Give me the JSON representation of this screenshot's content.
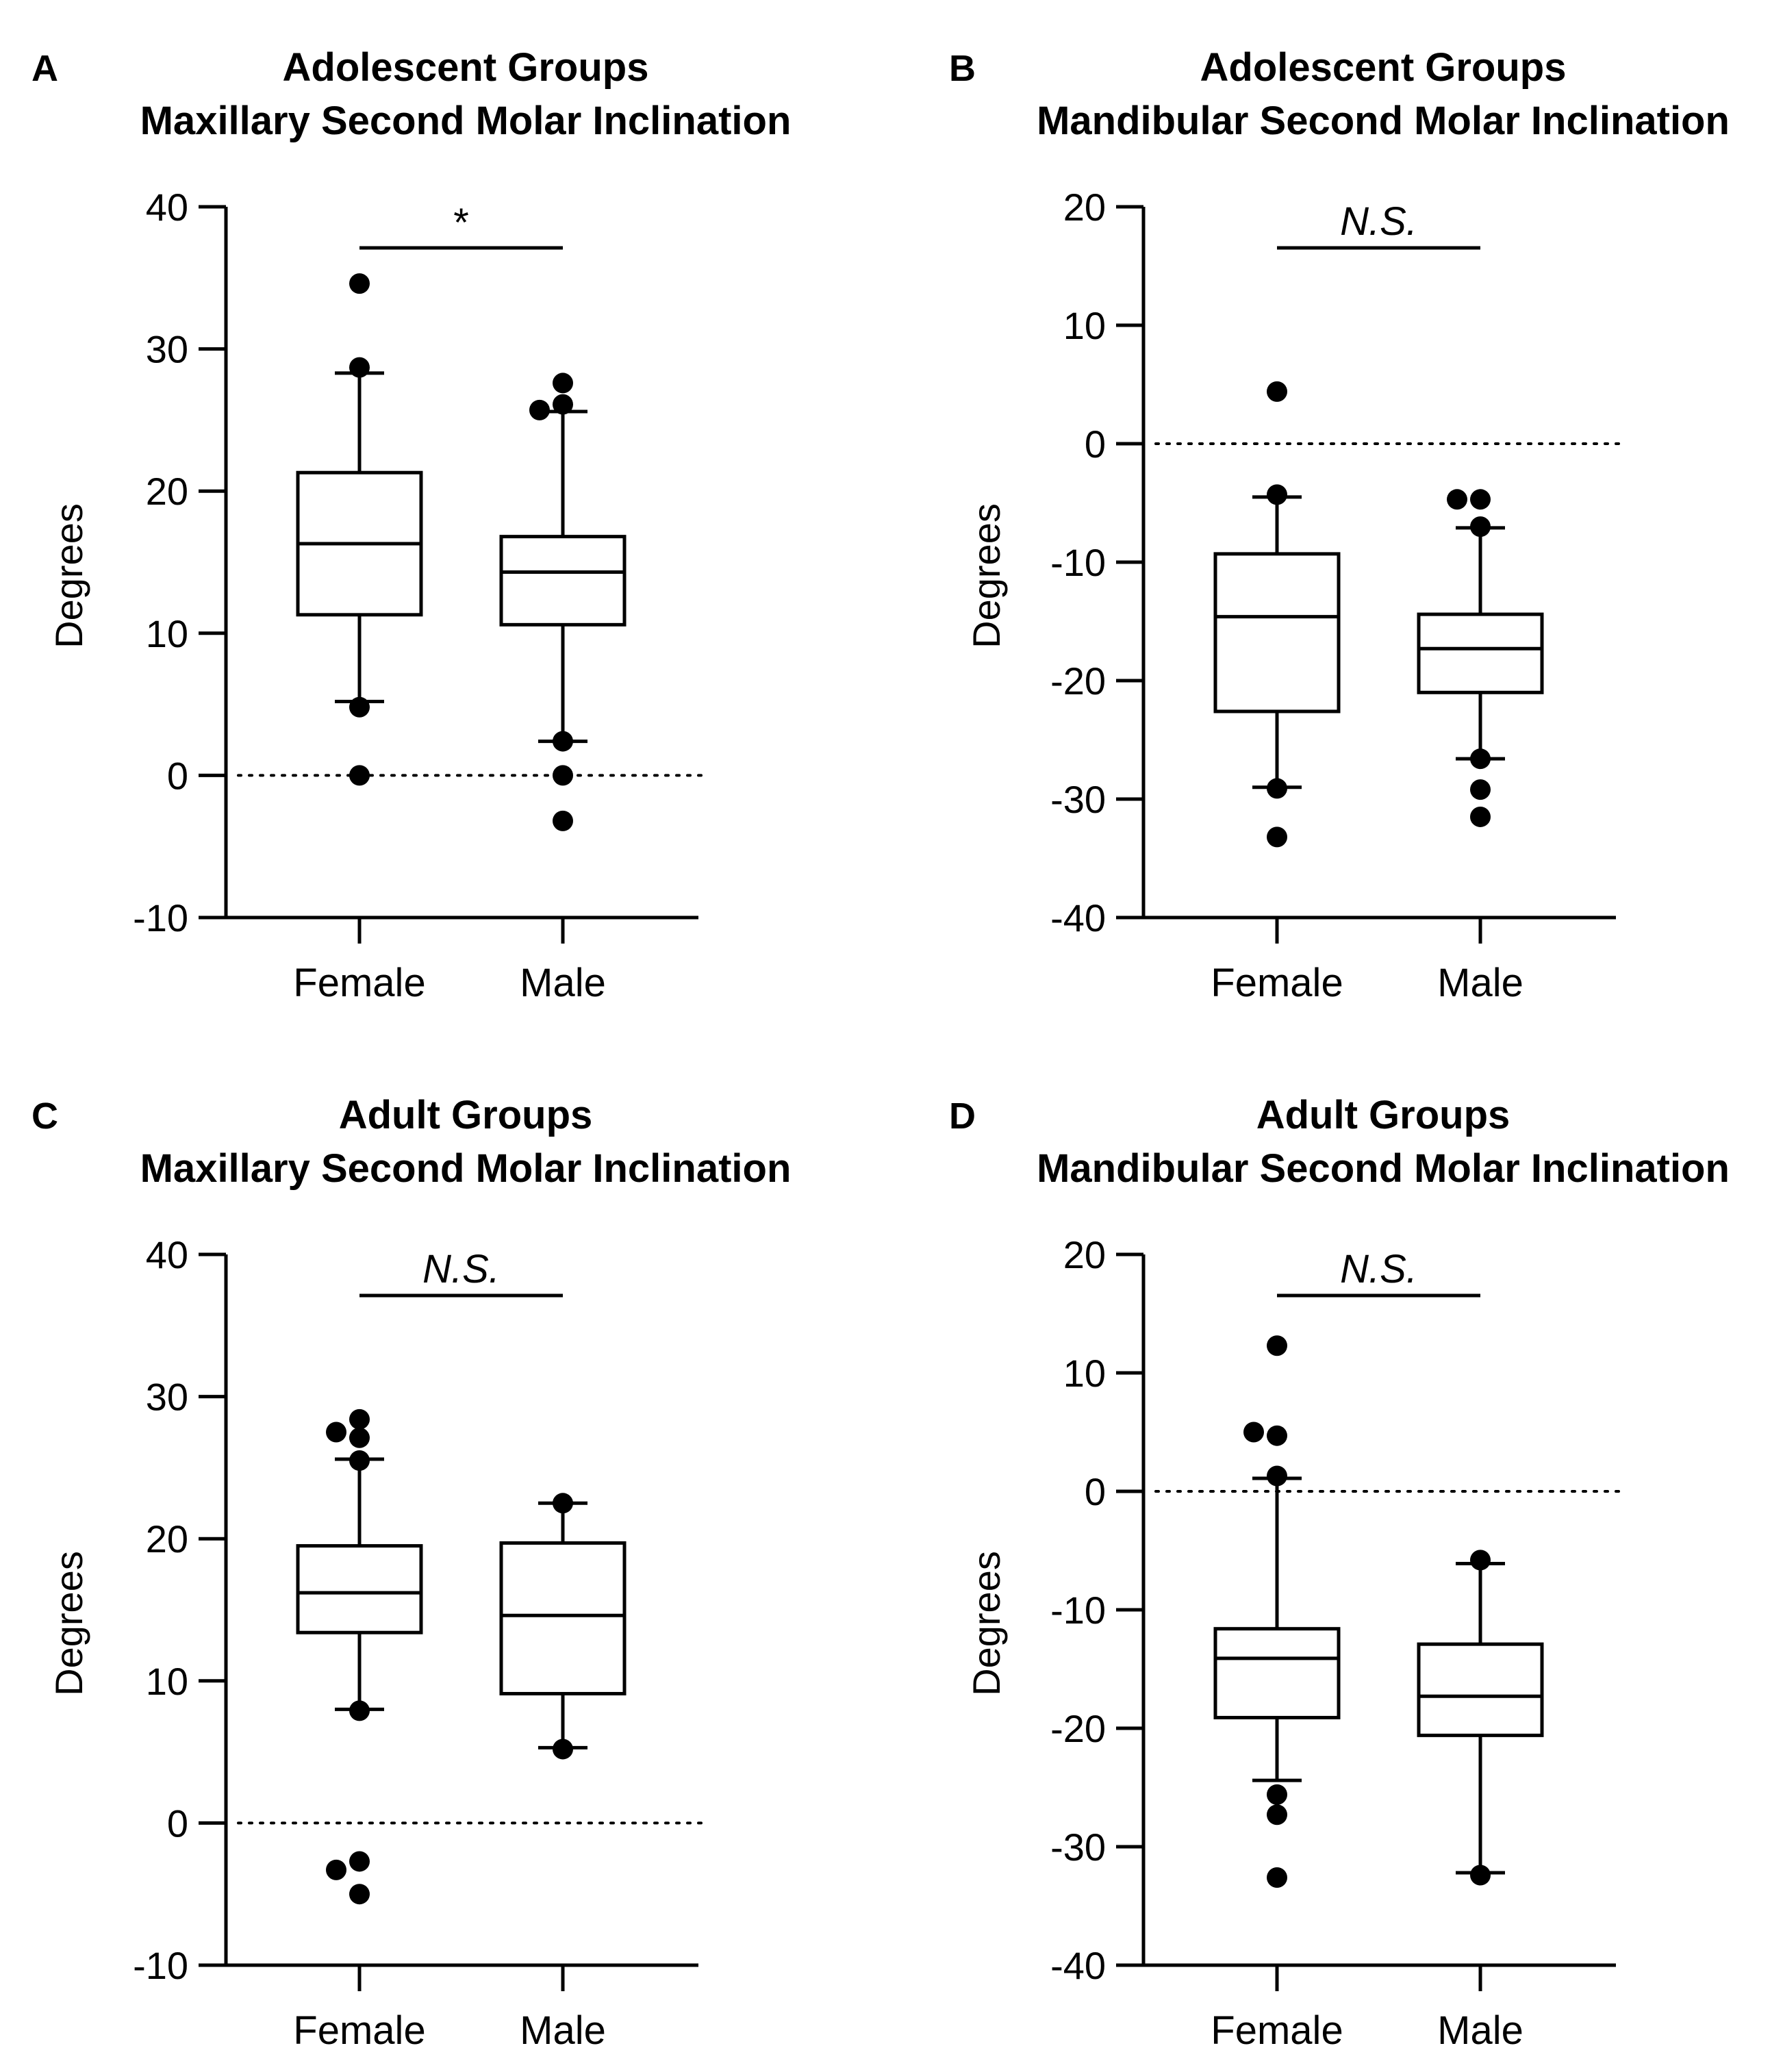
{
  "figure": {
    "background": "#ffffff",
    "ink": "#000000"
  },
  "chart_data": [
    {
      "panel": "A",
      "type": "box",
      "title_line1": "Adolescent Groups",
      "title_line2": "Maxillary Second Molar Inclination",
      "ylabel": "Degrees",
      "ylim": [
        -10,
        40
      ],
      "yticks": [
        40,
        30,
        20,
        10,
        0,
        -10
      ],
      "reference_line": 0,
      "categories": [
        "Female",
        "Male"
      ],
      "significance": "*",
      "significance_italic": false,
      "boxes": [
        {
          "name": "Female",
          "whisker_low": 5.2,
          "q1": 11.3,
          "median": 16.3,
          "q3": 21.3,
          "whisker_high": 28.3,
          "outliers": [
            34.6,
            28.7,
            4.8,
            0.0
          ]
        },
        {
          "name": "Male",
          "whisker_low": 2.4,
          "q1": 10.6,
          "median": 14.3,
          "q3": 16.8,
          "whisker_high": 25.6,
          "outliers": [
            26.1,
            27.6,
            25.7,
            2.4,
            0.0,
            -3.2
          ]
        }
      ]
    },
    {
      "panel": "B",
      "type": "box",
      "title_line1": "Adolescent Groups",
      "title_line2": "Mandibular Second Molar Inclination",
      "ylabel": "Degrees",
      "ylim": [
        -40,
        20
      ],
      "yticks": [
        20,
        10,
        0,
        -10,
        -20,
        -30,
        -40
      ],
      "reference_line": 0,
      "categories": [
        "Female",
        "Male"
      ],
      "significance": "N.S.",
      "significance_italic": true,
      "boxes": [
        {
          "name": "Female",
          "whisker_low": -29.0,
          "q1": -22.6,
          "median": -14.6,
          "q3": -9.3,
          "whisker_high": -4.5,
          "outliers": [
            4.4,
            -4.3,
            -29.1,
            -33.2
          ]
        },
        {
          "name": "Male",
          "whisker_low": -26.6,
          "q1": -21.0,
          "median": -17.3,
          "q3": -14.4,
          "whisker_high": -7.1,
          "outliers": [
            -4.7,
            -4.7,
            -7.0,
            -26.6,
            -29.2,
            -31.5
          ]
        }
      ]
    },
    {
      "panel": "C",
      "type": "box",
      "title_line1": "Adult Groups",
      "title_line2": "Maxillary Second Molar Inclination",
      "ylabel": "Degrees",
      "ylim": [
        -10,
        40
      ],
      "yticks": [
        40,
        30,
        20,
        10,
        0,
        -10
      ],
      "reference_line": 0,
      "categories": [
        "Female",
        "Male"
      ],
      "significance": "N.S.",
      "significance_italic": true,
      "boxes": [
        {
          "name": "Female",
          "whisker_low": 8.0,
          "q1": 13.4,
          "median": 16.2,
          "q3": 19.5,
          "whisker_high": 25.6,
          "outliers": [
            28.4,
            27.1,
            27.5,
            25.5,
            7.9,
            -2.7,
            -3.3,
            -5.0
          ]
        },
        {
          "name": "Male",
          "whisker_low": 5.3,
          "q1": 9.1,
          "median": 14.6,
          "q3": 19.7,
          "whisker_high": 22.5,
          "outliers": [
            22.5,
            5.2
          ]
        }
      ]
    },
    {
      "panel": "D",
      "type": "box",
      "title_line1": "Adult Groups",
      "title_line2": "Mandibular Second Molar Inclination",
      "ylabel": "Degrees",
      "ylim": [
        -40,
        20
      ],
      "yticks": [
        20,
        10,
        0,
        -10,
        -20,
        -30,
        -40
      ],
      "reference_line": 0,
      "categories": [
        "Female",
        "Male"
      ],
      "significance": "N.S.",
      "significance_italic": true,
      "boxes": [
        {
          "name": "Female",
          "whisker_low": -24.4,
          "q1": -19.1,
          "median": -14.1,
          "q3": -11.6,
          "whisker_high": 1.1,
          "outliers": [
            12.3,
            4.7,
            5.0,
            1.3,
            -25.6,
            -27.3,
            -32.6
          ]
        },
        {
          "name": "Male",
          "whisker_low": -32.2,
          "q1": -20.6,
          "median": -17.3,
          "q3": -12.9,
          "whisker_high": -6.1,
          "outliers": [
            -5.8,
            -32.4
          ]
        }
      ]
    }
  ]
}
